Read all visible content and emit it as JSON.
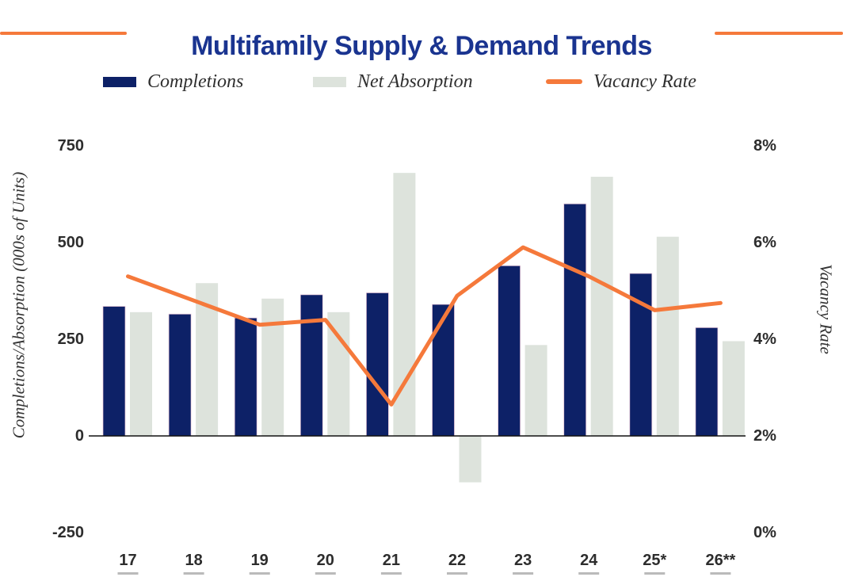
{
  "chart_data": {
    "type": "combo-bar-line",
    "title": "Multifamily Supply & Demand Trends",
    "title_color": "#1a3490",
    "accent_rule_color": "#f5793b",
    "categories": [
      "17",
      "18",
      "19",
      "20",
      "21",
      "22",
      "23",
      "24",
      "25*",
      "26**"
    ],
    "series": [
      {
        "name": "Completions",
        "type": "bar",
        "axis": "left",
        "color": "#0d2167",
        "values": [
          335,
          315,
          305,
          365,
          370,
          340,
          440,
          600,
          420,
          280
        ]
      },
      {
        "name": "Net Absorption",
        "type": "bar",
        "axis": "left",
        "color": "#dde3dc",
        "values": [
          320,
          395,
          355,
          320,
          680,
          -120,
          235,
          670,
          515,
          245
        ]
      },
      {
        "name": "Vacancy Rate",
        "type": "line",
        "axis": "right",
        "color": "#f5793b",
        "values": [
          5.3,
          4.8,
          4.3,
          4.4,
          2.65,
          4.9,
          5.9,
          5.3,
          4.6,
          4.75
        ]
      }
    ],
    "left_axis": {
      "label": "Completions/Absorption (000s of Units)",
      "tick_labels": [
        "750",
        "500",
        "250",
        "0",
        "-250"
      ],
      "tick_values": [
        750,
        500,
        250,
        0,
        -250
      ],
      "lim": [
        -250,
        750
      ]
    },
    "right_axis": {
      "label": "Vacancy Rate",
      "tick_labels": [
        "8%",
        "6%",
        "4%",
        "2%",
        "0%"
      ],
      "tick_values": [
        8,
        6,
        4,
        2,
        0
      ],
      "lim": [
        0,
        8
      ]
    },
    "grid": false,
    "legend_position": "top",
    "tick_text_color": "#2d2d2d",
    "baseline_color": "#111111"
  }
}
